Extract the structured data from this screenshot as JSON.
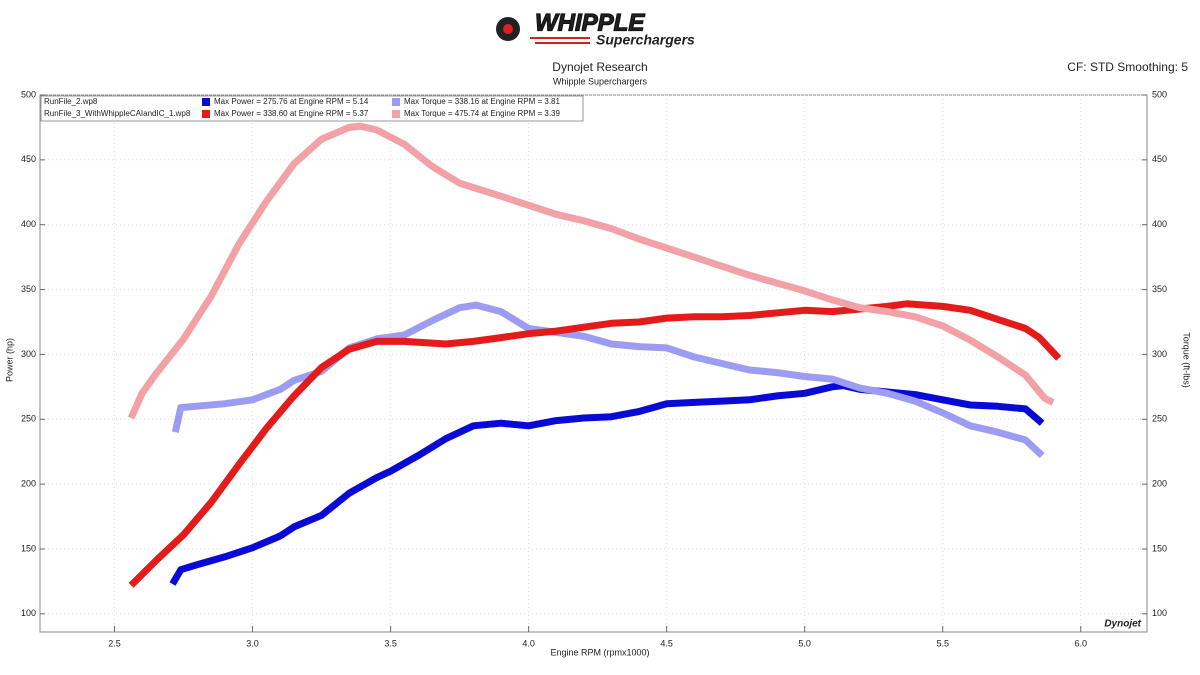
{
  "chart_data": {
    "type": "line",
    "logo": {
      "brand": "WHIPPLE",
      "tagline": "Superchargers"
    },
    "title": "Dynojet Research",
    "subtitle": "Whipple Superchargers",
    "settings_note": "CF: STD Smoothing: 5",
    "watermark": "Dynojet",
    "x_label": "Engine RPM (rpmx1000)",
    "y_label": "Power (hp)",
    "y2_label": "Torque (ft-lbs)",
    "runs": [
      "RunFile_2.wp8",
      "RunFile_3_WithWhippleCAIandIC_1.wp8"
    ],
    "xlim": [
      2.23,
      6.24
    ],
    "xticks": [
      2.5,
      {
        "value": 3,
        "label": "3.0"
      },
      3.5,
      {
        "value": 4,
        "label": "4.0"
      },
      4.5,
      {
        "value": 5,
        "label": "5.0"
      },
      5.5,
      {
        "value": 6,
        "label": "6.0"
      }
    ],
    "ylim": [
      86,
      500
    ],
    "yticks": [
      100,
      150,
      200,
      250,
      300,
      350,
      400,
      450,
      500
    ],
    "y2lim": [
      86,
      500
    ],
    "y2ticks": [
      100,
      150,
      200,
      250,
      300,
      350,
      400,
      450,
      500
    ],
    "grid": true,
    "series": [
      {
        "name": "Max Power = 275.76 at Engine RPM = 5.14",
        "color": "#0a0ad6",
        "x": [
          2.71,
          2.74,
          2.8,
          2.9,
          3.0,
          3.1,
          3.15,
          3.25,
          3.35,
          3.45,
          3.5,
          3.6,
          3.7,
          3.8,
          3.9,
          4.0,
          4.1,
          4.2,
          4.3,
          4.4,
          4.5,
          4.6,
          4.7,
          4.8,
          4.9,
          5.0,
          5.1,
          5.14,
          5.2,
          5.3,
          5.4,
          5.5,
          5.6,
          5.7,
          5.8,
          5.86
        ],
        "values": [
          123,
          134,
          138,
          144,
          151,
          160,
          167,
          176,
          193,
          205,
          210,
          222,
          235,
          245,
          247,
          245,
          249,
          251,
          252,
          256,
          262,
          263,
          264,
          265,
          268,
          270,
          275,
          276,
          273,
          271,
          269,
          265,
          261,
          260,
          258,
          247
        ]
      },
      {
        "name": "Max Torque = 338.16 at Engine RPM = 3.81",
        "color": "#9c9cf2",
        "axis": "y2",
        "x": [
          2.72,
          2.74,
          2.9,
          3.0,
          3.1,
          3.15,
          3.25,
          3.35,
          3.45,
          3.55,
          3.65,
          3.75,
          3.81,
          3.9,
          4.0,
          4.1,
          4.2,
          4.3,
          4.4,
          4.5,
          4.6,
          4.7,
          4.8,
          4.9,
          5.0,
          5.1,
          5.2,
          5.3,
          5.4,
          5.5,
          5.6,
          5.7,
          5.8,
          5.86
        ],
        "values": [
          240,
          259,
          262,
          265,
          273,
          280,
          287,
          305,
          312,
          315,
          326,
          336,
          338,
          333,
          320,
          317,
          314,
          308,
          306,
          305,
          298,
          293,
          288,
          286,
          283,
          281,
          274,
          270,
          264,
          255,
          245,
          240,
          234,
          222
        ]
      },
      {
        "name": "Max Power = 338.60 at Engine RPM = 5.37",
        "color": "#e41b1b",
        "x": [
          2.56,
          2.65,
          2.75,
          2.85,
          2.95,
          3.05,
          3.15,
          3.25,
          3.35,
          3.45,
          3.55,
          3.7,
          3.8,
          3.9,
          4.0,
          4.1,
          4.2,
          4.3,
          4.4,
          4.5,
          4.6,
          4.7,
          4.8,
          4.9,
          5.0,
          5.1,
          5.2,
          5.3,
          5.37,
          5.5,
          5.6,
          5.7,
          5.8,
          5.85,
          5.92
        ],
        "values": [
          122,
          141,
          161,
          186,
          215,
          243,
          268,
          290,
          304,
          310,
          310,
          308,
          310,
          313,
          316,
          318,
          321,
          324,
          325,
          328,
          329,
          329,
          330,
          332,
          334,
          333,
          335,
          337,
          339,
          337,
          334,
          327,
          320,
          313,
          297
        ]
      },
      {
        "name": "Max Torque = 475.74 at Engine RPM = 3.39",
        "color": "#f2a2a6",
        "axis": "y2",
        "x": [
          2.56,
          2.6,
          2.65,
          2.75,
          2.85,
          2.95,
          3.05,
          3.15,
          3.25,
          3.35,
          3.39,
          3.45,
          3.55,
          3.65,
          3.75,
          3.9,
          4.0,
          4.1,
          4.2,
          4.3,
          4.4,
          4.5,
          4.6,
          4.7,
          4.8,
          4.9,
          5.0,
          5.1,
          5.2,
          5.3,
          5.4,
          5.5,
          5.6,
          5.7,
          5.8,
          5.87,
          5.9
        ],
        "values": [
          251,
          270,
          285,
          312,
          345,
          385,
          418,
          447,
          466,
          475,
          476,
          473,
          462,
          445,
          432,
          422,
          415,
          408,
          403,
          397,
          389,
          382,
          375,
          368,
          361,
          355,
          349,
          342,
          336,
          333,
          329,
          322,
          311,
          298,
          284,
          266,
          263
        ]
      }
    ]
  }
}
